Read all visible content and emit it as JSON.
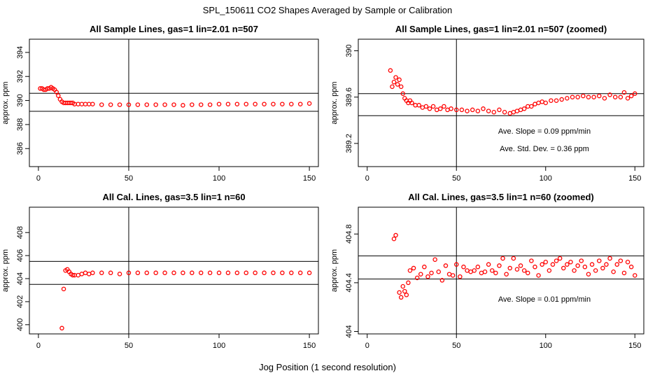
{
  "figure": {
    "title": "SPL_150611  CO2 Shapes Averaged by Sample or Calibration",
    "xlabel": "Jog Position (1 second resolution)",
    "point_color": "#ff0000"
  },
  "chart_data": [
    {
      "type": "scatter",
      "title": "All Sample Lines, gas=1 lin=2.01 n=507",
      "ylabel": "approx. ppm",
      "xlim": [
        -5,
        155
      ],
      "ylim": [
        384.5,
        395.1
      ],
      "xticks": [
        0,
        50,
        100,
        150
      ],
      "yticks": [
        386,
        388,
        390,
        392,
        394
      ],
      "vline": 50,
      "hlines": [
        390.6,
        389.1
      ],
      "annotations": [],
      "series": [
        {
          "x": [
            1,
            2,
            3,
            4,
            5,
            6,
            7,
            8,
            9,
            10,
            11,
            12,
            13,
            14,
            15,
            16,
            17,
            18,
            19,
            20,
            22,
            24,
            26,
            28,
            30,
            35,
            40,
            45,
            50,
            55,
            60,
            65,
            70,
            75,
            80,
            85,
            90,
            95,
            100,
            105,
            110,
            115,
            120,
            125,
            130,
            135,
            140,
            145,
            150
          ],
          "y": [
            391.0,
            391.0,
            390.9,
            390.9,
            391.0,
            391.0,
            391.1,
            391.0,
            390.9,
            390.7,
            390.4,
            390.1,
            389.9,
            389.8,
            389.8,
            389.8,
            389.8,
            389.8,
            389.8,
            389.7,
            389.7,
            389.7,
            389.7,
            389.7,
            389.7,
            389.65,
            389.65,
            389.65,
            389.65,
            389.65,
            389.65,
            389.65,
            389.65,
            389.65,
            389.6,
            389.65,
            389.65,
            389.65,
            389.7,
            389.7,
            389.7,
            389.7,
            389.7,
            389.7,
            389.7,
            389.7,
            389.7,
            389.7,
            389.75
          ]
        }
      ]
    },
    {
      "type": "scatter",
      "title": "All Sample Lines, gas=1 lin=2.01 n=507 (zoomed)",
      "ylabel": "approx. ppm",
      "xlim": [
        -5,
        155
      ],
      "ylim": [
        389.0,
        390.1
      ],
      "xticks": [
        0,
        50,
        100,
        150
      ],
      "yticks": [
        389.2,
        389.6,
        390.0
      ],
      "vline": 50,
      "hlines": [
        389.63,
        389.44
      ],
      "annotations": [
        "Ave. Slope =  0.09  ppm/min",
        "Ave. Std. Dev. =  0.36  ppm"
      ],
      "series": [
        {
          "x": [
            13,
            14,
            15,
            16,
            17,
            18,
            19,
            20,
            21,
            22,
            23,
            24,
            25,
            27,
            29,
            31,
            33,
            35,
            37,
            39,
            41,
            43,
            45,
            47,
            50,
            53,
            56,
            59,
            62,
            65,
            68,
            71,
            74,
            77,
            80,
            82,
            84,
            86,
            88,
            90,
            92,
            94,
            96,
            98,
            100,
            103,
            106,
            109,
            112,
            115,
            118,
            121,
            124,
            127,
            130,
            133,
            136,
            139,
            142,
            144,
            146,
            148,
            150
          ],
          "y": [
            389.83,
            389.69,
            389.73,
            389.77,
            389.71,
            389.75,
            389.69,
            389.63,
            389.59,
            389.57,
            389.55,
            389.57,
            389.55,
            389.53,
            389.53,
            389.51,
            389.52,
            389.5,
            389.52,
            389.49,
            389.5,
            389.52,
            389.49,
            389.5,
            389.49,
            389.49,
            389.48,
            389.49,
            389.48,
            389.5,
            389.48,
            389.47,
            389.49,
            389.47,
            389.46,
            389.47,
            389.48,
            389.49,
            389.5,
            389.52,
            389.52,
            389.54,
            389.55,
            389.56,
            389.55,
            389.57,
            389.57,
            389.58,
            389.59,
            389.6,
            389.6,
            389.61,
            389.6,
            389.6,
            389.61,
            389.59,
            389.62,
            389.6,
            389.6,
            389.64,
            389.59,
            389.61,
            389.63
          ]
        }
      ]
    },
    {
      "type": "scatter",
      "title": "All Cal. Lines, gas=3.5 lin=1 n=60",
      "ylabel": "approx. ppm",
      "xlim": [
        -5,
        155
      ],
      "ylim": [
        399.2,
        410.2
      ],
      "xticks": [
        0,
        50,
        100,
        150
      ],
      "yticks": [
        400,
        402,
        404,
        406,
        408
      ],
      "vline": 50,
      "hlines": [
        405.5,
        403.5
      ],
      "annotations": [],
      "series": [
        {
          "x": [
            13,
            14,
            15,
            16,
            17,
            18,
            19,
            20,
            22,
            24,
            26,
            28,
            30,
            35,
            40,
            45,
            50,
            55,
            60,
            65,
            70,
            75,
            80,
            85,
            90,
            95,
            100,
            105,
            110,
            115,
            120,
            125,
            130,
            135,
            140,
            145,
            150
          ],
          "y": [
            399.7,
            403.1,
            404.7,
            404.8,
            404.6,
            404.4,
            404.3,
            404.3,
            404.3,
            404.4,
            404.5,
            404.4,
            404.5,
            404.5,
            404.5,
            404.4,
            404.5,
            404.5,
            404.5,
            404.5,
            404.5,
            404.5,
            404.5,
            404.5,
            404.5,
            404.5,
            404.5,
            404.5,
            404.5,
            404.5,
            404.5,
            404.5,
            404.5,
            404.5,
            404.5,
            404.5,
            404.5
          ]
        }
      ]
    },
    {
      "type": "scatter",
      "title": "All Cal. Lines, gas=3.5 lin=1 n=60 (zoomed)",
      "ylabel": "approx. ppm",
      "xlim": [
        -5,
        155
      ],
      "ylim": [
        403.98,
        405.02
      ],
      "xticks": [
        0,
        50,
        100,
        150
      ],
      "yticks": [
        404.0,
        404.4,
        404.8
      ],
      "vline": 50,
      "hlines": [
        404.62,
        404.43
      ],
      "annotations": [
        "Ave. Slope =  0.01  ppm/min"
      ],
      "series": [
        {
          "x": [
            15,
            16,
            18,
            19,
            20,
            21,
            22,
            23,
            24,
            26,
            28,
            30,
            32,
            34,
            36,
            38,
            40,
            42,
            44,
            46,
            48,
            50,
            52,
            54,
            56,
            58,
            60,
            62,
            64,
            66,
            68,
            70,
            72,
            74,
            76,
            78,
            80,
            82,
            84,
            86,
            88,
            90,
            92,
            94,
            96,
            98,
            100,
            102,
            104,
            106,
            108,
            110,
            112,
            114,
            116,
            118,
            120,
            122,
            124,
            126,
            128,
            130,
            132,
            134,
            136,
            138,
            140,
            142,
            144,
            146,
            148,
            150
          ],
          "y": [
            404.76,
            404.79,
            404.32,
            404.28,
            404.37,
            404.33,
            404.3,
            404.4,
            404.5,
            404.52,
            404.44,
            404.47,
            404.53,
            404.45,
            404.48,
            404.59,
            404.49,
            404.42,
            404.54,
            404.47,
            404.46,
            404.55,
            404.45,
            404.53,
            404.5,
            404.49,
            404.5,
            404.53,
            404.48,
            404.49,
            404.55,
            404.5,
            404.48,
            404.54,
            404.6,
            404.47,
            404.52,
            404.6,
            404.51,
            404.54,
            404.5,
            404.48,
            404.58,
            404.53,
            404.46,
            404.55,
            404.57,
            404.5,
            404.55,
            404.58,
            404.6,
            404.52,
            404.55,
            404.57,
            404.5,
            404.54,
            404.58,
            404.53,
            404.47,
            404.55,
            404.5,
            404.58,
            404.52,
            404.55,
            404.6,
            404.49,
            404.55,
            404.58,
            404.48,
            404.57,
            404.53,
            404.46
          ]
        }
      ]
    }
  ]
}
